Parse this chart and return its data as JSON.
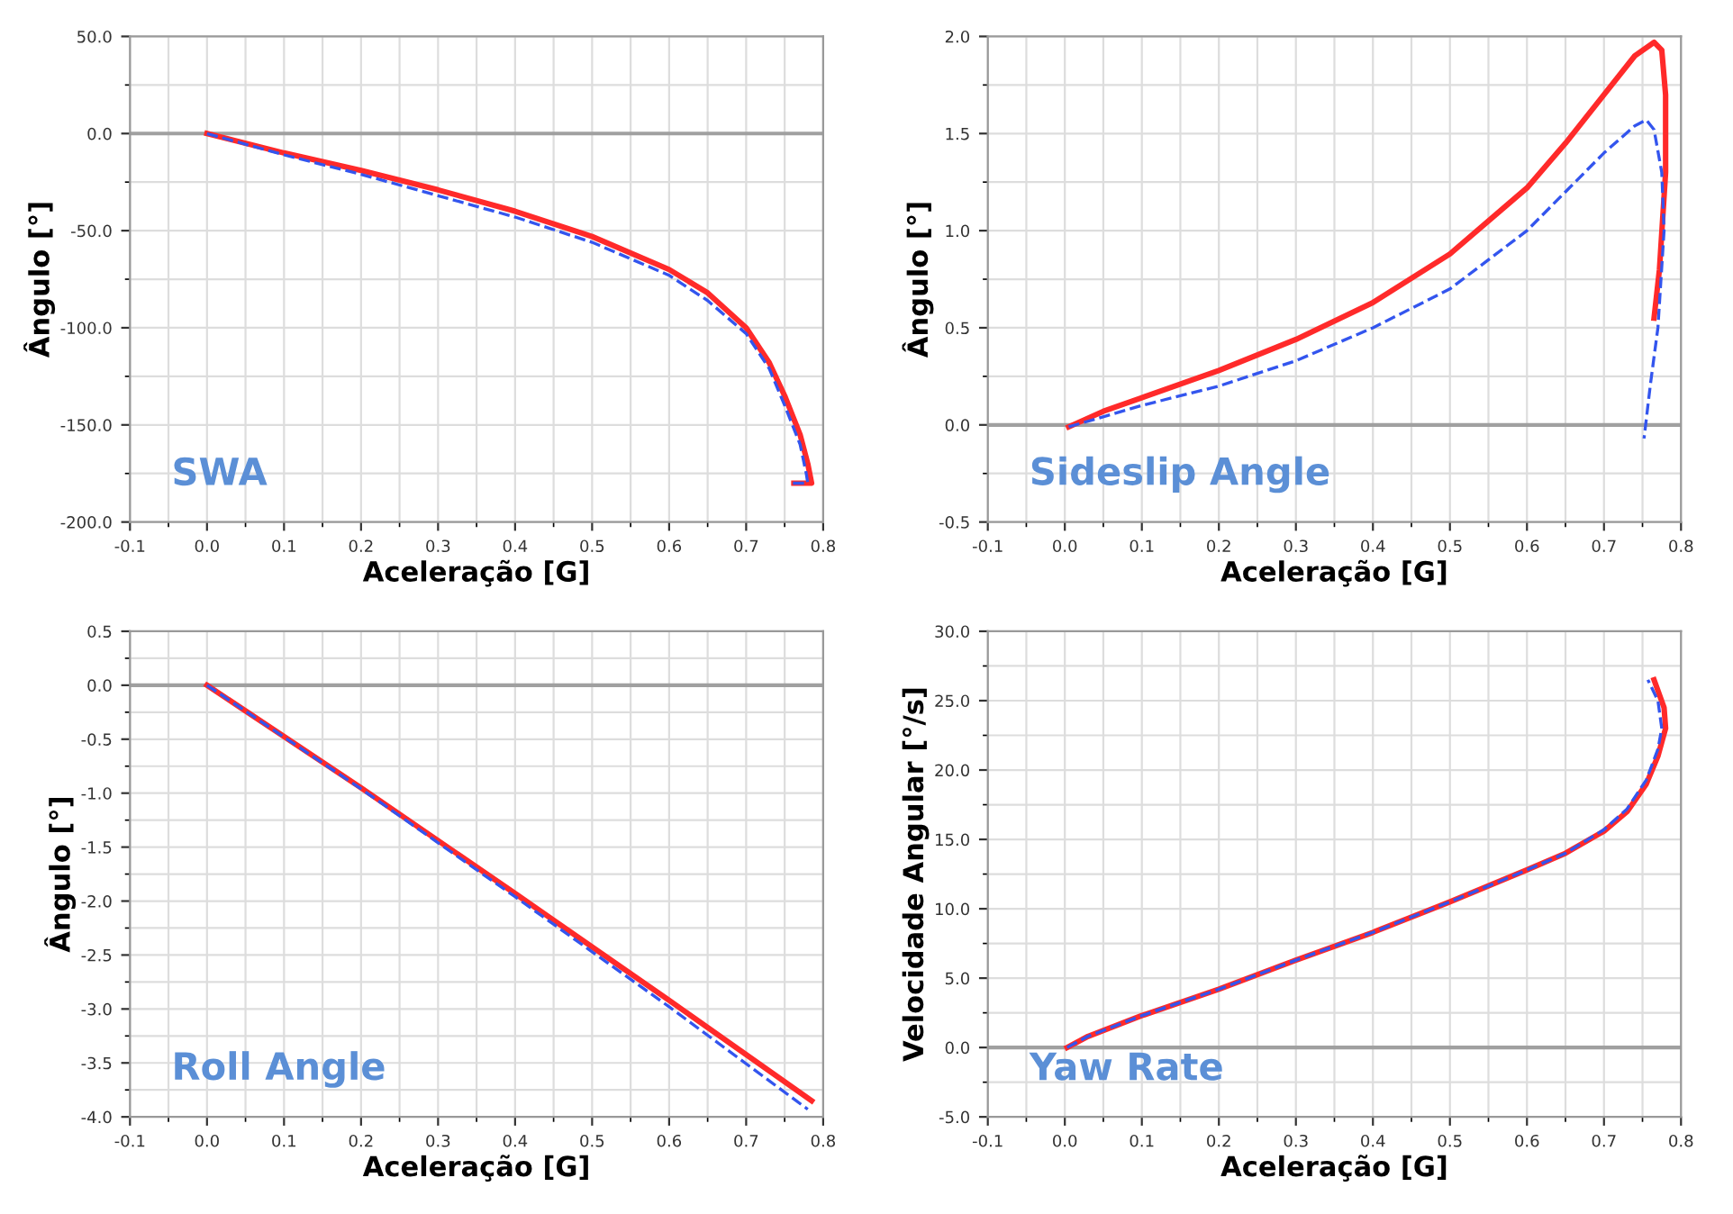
{
  "chart_data": [
    {
      "type": "line",
      "title": "SWA",
      "xlabel": "Aceleração [G]",
      "ylabel": "Ângulo [°]",
      "xlim": [
        -0.1,
        0.8
      ],
      "ylim": [
        -200,
        50
      ],
      "xticks": [
        {
          "value": -0.1,
          "label": "-0.1"
        },
        {
          "value": 0,
          "label": "0.0"
        },
        {
          "value": 0.1,
          "label": "0.1"
        },
        {
          "value": 0.2,
          "label": "0.2"
        },
        {
          "value": 0.3,
          "label": "0.3"
        },
        {
          "value": 0.4,
          "label": "0.4"
        },
        {
          "value": 0.5,
          "label": "0.5"
        },
        {
          "value": 0.6,
          "label": "0.6"
        },
        {
          "value": 0.7,
          "label": "0.7"
        },
        {
          "value": 0.8,
          "label": "0.8"
        }
      ],
      "yticks": [
        {
          "value": 50,
          "label": "50.0"
        },
        {
          "value": 0,
          "label": "0.0"
        },
        {
          "value": -50,
          "label": "-50.0"
        },
        {
          "value": -100,
          "label": "-100.0"
        },
        {
          "value": -150,
          "label": "-150.0"
        },
        {
          "value": -200,
          "label": "-200.0"
        }
      ],
      "grid": true,
      "ref_lines": [
        {
          "axis": "y",
          "value": 0,
          "color": "#a0a0a0"
        }
      ],
      "series": [
        {
          "color": "#ff2a2a",
          "line_style": "solid",
          "x": [
            0,
            0.1,
            0.2,
            0.3,
            0.4,
            0.5,
            0.6,
            0.65,
            0.7,
            0.73,
            0.75,
            0.77,
            0.78,
            0.785,
            0.762
          ],
          "values": [
            0,
            -10,
            -19,
            -29,
            -40,
            -53,
            -70,
            -82,
            -100,
            -118,
            -135,
            -155,
            -170,
            -180,
            -180
          ]
        },
        {
          "color": "#3355ee",
          "line_style": "dashed",
          "x": [
            0,
            0.1,
            0.2,
            0.3,
            0.4,
            0.5,
            0.6,
            0.65,
            0.7,
            0.73,
            0.75,
            0.77,
            0.778,
            0.78,
            0.76
          ],
          "values": [
            0,
            -11,
            -21,
            -32,
            -43,
            -56,
            -73,
            -86,
            -103,
            -121,
            -140,
            -160,
            -175,
            -180,
            -180
          ]
        }
      ]
    },
    {
      "type": "line",
      "title": "Sideslip Angle",
      "xlabel": "Aceleração [G]",
      "ylabel": "Ângulo [°]",
      "xlim": [
        -0.1,
        0.8
      ],
      "ylim": [
        -0.5,
        2.0
      ],
      "xticks": [
        {
          "value": -0.1,
          "label": "-0.1"
        },
        {
          "value": 0,
          "label": "0.0"
        },
        {
          "value": 0.1,
          "label": "0.1"
        },
        {
          "value": 0.2,
          "label": "0.2"
        },
        {
          "value": 0.3,
          "label": "0.3"
        },
        {
          "value": 0.4,
          "label": "0.4"
        },
        {
          "value": 0.5,
          "label": "0.5"
        },
        {
          "value": 0.6,
          "label": "0.6"
        },
        {
          "value": 0.7,
          "label": "0.7"
        },
        {
          "value": 0.8,
          "label": "0.8"
        }
      ],
      "yticks": [
        {
          "value": -0.5,
          "label": "-0.5"
        },
        {
          "value": 0,
          "label": "0.0"
        },
        {
          "value": 0.5,
          "label": "0.5"
        },
        {
          "value": 1.0,
          "label": "1.0"
        },
        {
          "value": 1.5,
          "label": "1.5"
        },
        {
          "value": 2.0,
          "label": "2.0"
        }
      ],
      "grid": true,
      "ref_lines": [
        {
          "axis": "y",
          "value": 0,
          "color": "#a0a0a0"
        }
      ],
      "series": [
        {
          "color": "#ff2a2a",
          "line_style": "solid",
          "x": [
            0.005,
            0.05,
            0.1,
            0.2,
            0.3,
            0.4,
            0.5,
            0.6,
            0.65,
            0.7,
            0.74,
            0.765,
            0.775,
            0.78,
            0.78,
            0.772,
            0.765
          ],
          "values": [
            -0.01,
            0.07,
            0.14,
            0.28,
            0.44,
            0.63,
            0.88,
            1.22,
            1.45,
            1.7,
            1.9,
            1.97,
            1.93,
            1.7,
            1.3,
            0.8,
            0.55
          ]
        },
        {
          "color": "#3355ee",
          "line_style": "dashed",
          "x": [
            0.005,
            0.1,
            0.2,
            0.3,
            0.4,
            0.5,
            0.6,
            0.65,
            0.7,
            0.74,
            0.755,
            0.765,
            0.775,
            0.778,
            0.77,
            0.76,
            0.752
          ],
          "values": [
            -0.01,
            0.1,
            0.2,
            0.33,
            0.5,
            0.7,
            1.0,
            1.2,
            1.4,
            1.54,
            1.57,
            1.52,
            1.3,
            1.0,
            0.5,
            0.2,
            -0.07
          ]
        }
      ]
    },
    {
      "type": "line",
      "title": "Roll Angle",
      "xlabel": "Aceleração [G]",
      "ylabel": "Ângulo [°]",
      "xlim": [
        -0.1,
        0.8
      ],
      "ylim": [
        -4.0,
        0.5
      ],
      "xticks": [
        {
          "value": -0.1,
          "label": "-0.1"
        },
        {
          "value": 0,
          "label": "0.0"
        },
        {
          "value": 0.1,
          "label": "0.1"
        },
        {
          "value": 0.2,
          "label": "0.2"
        },
        {
          "value": 0.3,
          "label": "0.3"
        },
        {
          "value": 0.4,
          "label": "0.4"
        },
        {
          "value": 0.5,
          "label": "0.5"
        },
        {
          "value": 0.6,
          "label": "0.6"
        },
        {
          "value": 0.7,
          "label": "0.7"
        },
        {
          "value": 0.8,
          "label": "0.8"
        }
      ],
      "yticks": [
        {
          "value": -4.0,
          "label": "-4.0"
        },
        {
          "value": -3.5,
          "label": "-3.5"
        },
        {
          "value": -3.0,
          "label": "-3.0"
        },
        {
          "value": -2.5,
          "label": "-2.5"
        },
        {
          "value": -2.0,
          "label": "-2.0"
        },
        {
          "value": -1.5,
          "label": "-1.5"
        },
        {
          "value": -1.0,
          "label": "-1.0"
        },
        {
          "value": -0.5,
          "label": "-0.5"
        },
        {
          "value": 0,
          "label": "0.0"
        },
        {
          "value": 0.5,
          "label": "0.5"
        }
      ],
      "grid": true,
      "ref_lines": [
        {
          "axis": "y",
          "value": 0,
          "color": "#a0a0a0"
        }
      ],
      "series": [
        {
          "color": "#ff2a2a",
          "line_style": "solid",
          "x": [
            0,
            0.2,
            0.4,
            0.6,
            0.785
          ],
          "values": [
            0,
            -0.95,
            -1.93,
            -2.92,
            -3.85
          ]
        },
        {
          "color": "#3355ee",
          "line_style": "dashed",
          "x": [
            0,
            0.2,
            0.4,
            0.6,
            0.78
          ],
          "values": [
            0,
            -0.96,
            -1.96,
            -2.98,
            -3.93
          ]
        }
      ]
    },
    {
      "type": "line",
      "title": "Yaw Rate",
      "xlabel": "Aceleração [G]",
      "ylabel": "Velocidade Angular [°/s]",
      "xlim": [
        -0.1,
        0.8
      ],
      "ylim": [
        -5.0,
        30.0
      ],
      "xticks": [
        {
          "value": -0.1,
          "label": "-0.1"
        },
        {
          "value": 0,
          "label": "0.0"
        },
        {
          "value": 0.1,
          "label": "0.1"
        },
        {
          "value": 0.2,
          "label": "0.2"
        },
        {
          "value": 0.3,
          "label": "0.3"
        },
        {
          "value": 0.4,
          "label": "0.4"
        },
        {
          "value": 0.5,
          "label": "0.5"
        },
        {
          "value": 0.6,
          "label": "0.6"
        },
        {
          "value": 0.7,
          "label": "0.7"
        },
        {
          "value": 0.8,
          "label": "0.8"
        }
      ],
      "yticks": [
        {
          "value": -5,
          "label": "-5.0"
        },
        {
          "value": 0,
          "label": "0.0"
        },
        {
          "value": 5,
          "label": "5.0"
        },
        {
          "value": 10,
          "label": "10.0"
        },
        {
          "value": 15,
          "label": "15.0"
        },
        {
          "value": 20,
          "label": "20.0"
        },
        {
          "value": 25,
          "label": "25.0"
        },
        {
          "value": 30,
          "label": "30.0"
        }
      ],
      "grid": true,
      "ref_lines": [
        {
          "axis": "y",
          "value": 0,
          "color": "#a0a0a0"
        }
      ],
      "series": [
        {
          "color": "#ff2a2a",
          "line_style": "solid",
          "x": [
            0.003,
            0.03,
            0.1,
            0.2,
            0.3,
            0.4,
            0.5,
            0.6,
            0.65,
            0.7,
            0.73,
            0.755,
            0.77,
            0.78,
            0.778,
            0.765
          ],
          "values": [
            0,
            0.8,
            2.3,
            4.2,
            6.3,
            8.3,
            10.5,
            12.8,
            14,
            15.6,
            17,
            19,
            21,
            23,
            24.5,
            26.5
          ]
        },
        {
          "color": "#3355ee",
          "line_style": "dashed",
          "x": [
            0.003,
            0.03,
            0.1,
            0.2,
            0.3,
            0.4,
            0.5,
            0.6,
            0.65,
            0.7,
            0.73,
            0.755,
            0.77,
            0.775,
            0.77,
            0.757
          ],
          "values": [
            0,
            0.8,
            2.3,
            4.2,
            6.3,
            8.3,
            10.5,
            12.8,
            14,
            15.7,
            17.2,
            19.3,
            21.5,
            23,
            25,
            26.5
          ]
        }
      ]
    }
  ]
}
